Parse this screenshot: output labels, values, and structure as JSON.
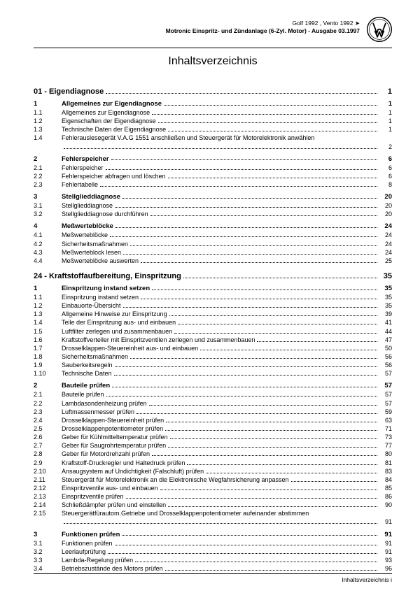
{
  "header": {
    "line1": "Golf 1992 , Vento 1992 ➤",
    "line2": "Motronic Einspritz- und Zündanlage (6-Zyl. Motor) - Ausgabe 03.1997"
  },
  "title": "Inhaltsverzeichnis",
  "footer": "Inhaltsverzeichnis  i",
  "toc": [
    {
      "type": "chapter",
      "num": "01 -",
      "label": "Eigendiagnose",
      "page": "1"
    },
    {
      "type": "heading",
      "num": "1",
      "label": "Allgemeines zur Eigendiagnose",
      "page": "1"
    },
    {
      "type": "item",
      "num": "1.1",
      "label": "Allgemeines zur Eigendiagnose",
      "page": "1"
    },
    {
      "type": "item",
      "num": "1.2",
      "label": "Eigenschaften der Eigendiagnose",
      "page": "1"
    },
    {
      "type": "item",
      "num": "1.3",
      "label": "Technische Daten der Eigendiagnose",
      "page": "1"
    },
    {
      "type": "item",
      "num": "1.4",
      "label": "Fehlerauslesegerät V.A.G 1551 anschließen und Steuergerät für Motorelektronik anwählen",
      "page": "2",
      "wrap": true
    },
    {
      "type": "heading",
      "num": "2",
      "label": "Fehlerspeicher",
      "page": "6"
    },
    {
      "type": "item",
      "num": "2.1",
      "label": "Fehlerspeicher",
      "page": "6"
    },
    {
      "type": "item",
      "num": "2.2",
      "label": "Fehlerspeicher abfragen und löschen",
      "page": "6"
    },
    {
      "type": "item",
      "num": "2.3",
      "label": "Fehlertabelle",
      "page": "8"
    },
    {
      "type": "heading",
      "num": "3",
      "label": "Stellglieddiagnose",
      "page": "20"
    },
    {
      "type": "item",
      "num": "3.1",
      "label": "Stellglieddiagnose",
      "page": "20"
    },
    {
      "type": "item",
      "num": "3.2",
      "label": "Stellglieddiagnose durchführen",
      "page": "20"
    },
    {
      "type": "heading",
      "num": "4",
      "label": "Meßwerteblöcke",
      "page": "24"
    },
    {
      "type": "item",
      "num": "4.1",
      "label": "Meßwerteblöcke",
      "page": "24"
    },
    {
      "type": "item",
      "num": "4.2",
      "label": "Sicherheitsmaßnahmen",
      "page": "24"
    },
    {
      "type": "item",
      "num": "4.3",
      "label": "Meßwerteblock lesen",
      "page": "24"
    },
    {
      "type": "item",
      "num": "4.4",
      "label": "Meßwerteblöcke auswerten",
      "page": "25"
    },
    {
      "type": "chapter",
      "num": "24 -",
      "label": "Kraftstoffaufbereitung, Einspritzung",
      "page": "35"
    },
    {
      "type": "heading",
      "num": "1",
      "label": "Einspritzung instand setzen",
      "page": "35"
    },
    {
      "type": "item",
      "num": "1.1",
      "label": "Einspritzung instand setzen",
      "page": "35"
    },
    {
      "type": "item",
      "num": "1.2",
      "label": "Einbauorte-Übersicht",
      "page": "35"
    },
    {
      "type": "item",
      "num": "1.3",
      "label": "Allgemeine Hinweise zur Einspritzung",
      "page": "39"
    },
    {
      "type": "item",
      "num": "1.4",
      "label": "Teile der Einspritzung aus- und einbauen",
      "page": "41"
    },
    {
      "type": "item",
      "num": "1.5",
      "label": "Luftfilter zerlegen und zusammenbauen",
      "page": "44"
    },
    {
      "type": "item",
      "num": "1.6",
      "label": "Kraftstoffverteiler mit Einspritzventilen zerlegen und zusammenbauen",
      "page": "47"
    },
    {
      "type": "item",
      "num": "1.7",
      "label": "Drosselklappen-Steuereinheit aus- und einbauen",
      "page": "50"
    },
    {
      "type": "item",
      "num": "1.8",
      "label": "Sicherheitsmaßnahmen",
      "page": "56"
    },
    {
      "type": "item",
      "num": "1.9",
      "label": "Sauberkeitsregeln",
      "page": "56"
    },
    {
      "type": "item",
      "num": "1.10",
      "label": "Technische Daten",
      "page": "57"
    },
    {
      "type": "heading",
      "num": "2",
      "label": "Bauteile prüfen",
      "page": "57"
    },
    {
      "type": "item",
      "num": "2.1",
      "label": "Bauteile prüfen",
      "page": "57"
    },
    {
      "type": "item",
      "num": "2.2",
      "label": "Lambdasondenheizung prüfen",
      "page": "57"
    },
    {
      "type": "item",
      "num": "2.3",
      "label": "Luftmassenmesser prüfen",
      "page": "59"
    },
    {
      "type": "item",
      "num": "2.4",
      "label": "Drosselklappen-Steuereinheit prüfen",
      "page": "63"
    },
    {
      "type": "item",
      "num": "2.5",
      "label": "Drosselklappenpotentiometer prüfen",
      "page": "71"
    },
    {
      "type": "item",
      "num": "2.6",
      "label": "Geber für Kühlmitteltemperatur prüfen",
      "page": "73"
    },
    {
      "type": "item",
      "num": "2.7",
      "label": "Geber für Saugrohrtemperatur prüfen",
      "page": "77"
    },
    {
      "type": "item",
      "num": "2.8",
      "label": "Geber für Motordrehzahl prüfen",
      "page": "80"
    },
    {
      "type": "item",
      "num": "2.9",
      "label": "Kraftstoff-Druckregler und Haltedruck prüfen",
      "page": "81"
    },
    {
      "type": "item",
      "num": "2.10",
      "label": "Ansaugsystem auf Undichtigkeit (Falschluft) prüfen",
      "page": "83"
    },
    {
      "type": "item",
      "num": "2.11",
      "label": "Steuergerät für Motorelektronik an die Elektronische Wegfahrsicherung anpassen",
      "page": "84"
    },
    {
      "type": "item",
      "num": "2.12",
      "label": "Einspritzventile aus- und einbauen",
      "page": "85"
    },
    {
      "type": "item",
      "num": "2.13",
      "label": "Einspritzventile prüfen",
      "page": "86"
    },
    {
      "type": "item",
      "num": "2.14",
      "label": "Schließdämpfer prüfen und einstellen",
      "page": "90"
    },
    {
      "type": "item",
      "num": "2.15",
      "label": "Steuergerätfürautom.Getriebe und Drosselklappenpotentiometer aufeinander abstimmen",
      "page": "91",
      "wrap": true
    },
    {
      "type": "heading",
      "num": "3",
      "label": "Funktionen prüfen",
      "page": "91"
    },
    {
      "type": "item",
      "num": "3.1",
      "label": "Funktionen prüfen",
      "page": "91"
    },
    {
      "type": "item",
      "num": "3.2",
      "label": "Leerlaufprüfung",
      "page": "91"
    },
    {
      "type": "item",
      "num": "3.3",
      "label": "Lambda-Regelung prüfen",
      "page": "93"
    },
    {
      "type": "item",
      "num": "3.4",
      "label": "Betriebszustände des Motors prüfen",
      "page": "96"
    }
  ]
}
